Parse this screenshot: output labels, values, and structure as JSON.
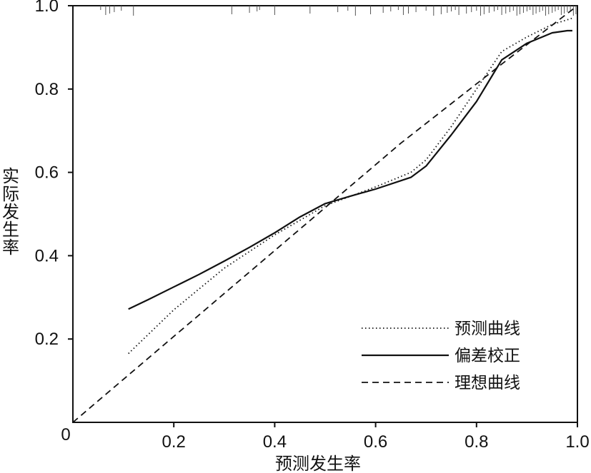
{
  "chart_data": {
    "type": "line",
    "xlabel": "预测发生率",
    "ylabel": "实际发生率",
    "xlim": [
      0,
      1.0
    ],
    "ylim": [
      0,
      1.0
    ],
    "x_ticks": [
      0.2,
      0.4,
      0.6,
      0.8,
      1.0
    ],
    "x_tick_labels": [
      "0.2",
      "0.4",
      "0.6",
      "0.8",
      "1.0"
    ],
    "y_ticks": [
      0.2,
      0.4,
      0.6,
      0.8,
      1.0
    ],
    "y_tick_labels": [
      "0.2",
      "0.4",
      "0.6",
      "0.8",
      "1.0"
    ],
    "origin_label": "0",
    "grid": false,
    "legend_position": "bottom-right",
    "series": [
      {
        "name": "预测曲线",
        "style": "dotted",
        "x": [
          0.11,
          0.2,
          0.3,
          0.4,
          0.5,
          0.6,
          0.67,
          0.7,
          0.75,
          0.8,
          0.85,
          0.9,
          0.95,
          0.99
        ],
        "y": [
          0.165,
          0.27,
          0.37,
          0.45,
          0.52,
          0.565,
          0.6,
          0.63,
          0.71,
          0.8,
          0.89,
          0.925,
          0.955,
          0.97
        ]
      },
      {
        "name": "偏差校正",
        "style": "solid",
        "x": [
          0.11,
          0.15,
          0.2,
          0.25,
          0.3,
          0.35,
          0.4,
          0.45,
          0.5,
          0.55,
          0.6,
          0.67,
          0.7,
          0.75,
          0.8,
          0.82,
          0.85,
          0.9,
          0.95,
          0.98,
          0.99
        ],
        "y": [
          0.272,
          0.295,
          0.325,
          0.355,
          0.387,
          0.42,
          0.455,
          0.493,
          0.525,
          0.543,
          0.56,
          0.588,
          0.615,
          0.69,
          0.77,
          0.81,
          0.87,
          0.91,
          0.935,
          0.94,
          0.94
        ]
      },
      {
        "name": "理想曲线",
        "style": "dashed",
        "x": [
          0,
          0.65,
          0.85,
          1.0
        ],
        "y": [
          0,
          0.67,
          0.86,
          1.0
        ]
      }
    ],
    "rug_x": [
      0.055,
      0.065,
      0.073,
      0.082,
      0.096,
      0.12,
      0.315,
      0.35,
      0.365,
      0.37,
      0.4,
      0.47,
      0.525,
      0.545,
      0.56,
      0.59,
      0.615,
      0.63,
      0.645,
      0.655,
      0.665,
      0.68,
      0.7,
      0.715,
      0.73,
      0.742,
      0.75,
      0.758,
      0.765,
      0.78,
      0.79,
      0.8,
      0.808,
      0.815,
      0.825,
      0.835,
      0.842,
      0.85,
      0.858,
      0.866,
      0.873,
      0.88,
      0.886,
      0.893,
      0.9,
      0.906,
      0.912,
      0.918,
      0.925,
      0.931,
      0.937,
      0.943,
      0.95,
      0.956,
      0.962,
      0.968,
      0.974,
      0.98,
      0.986,
      0.992,
      0.997
    ]
  }
}
